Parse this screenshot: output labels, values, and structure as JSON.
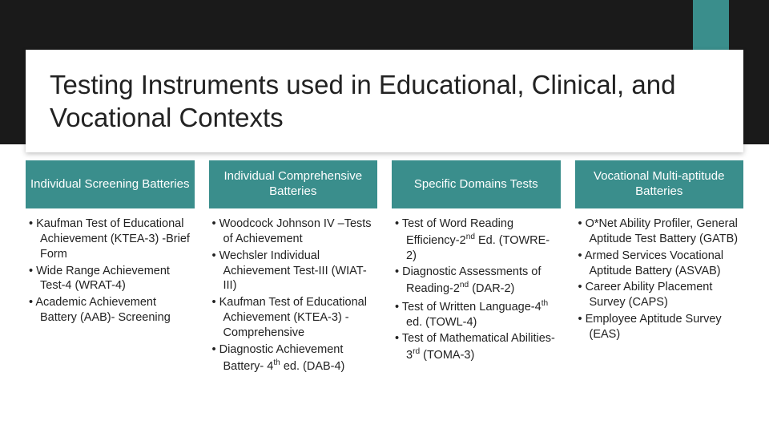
{
  "slide": {
    "title": "Testing Instruments used in Educational, Clinical, and Vocational Contexts",
    "accent_color": "#3a8e8c",
    "header_band_color": "#1a1a1a",
    "title_card_bg": "#ffffff",
    "columns": [
      {
        "header": "Individual Screening Batteries",
        "items": [
          "Kaufman Test of Educational Achievement (KTEA-3) -Brief Form",
          "Wide Range Achievement Test-4 (WRAT-4)",
          "Academic Achievement Battery (AAB)- Screening"
        ]
      },
      {
        "header": "Individual Comprehensive Batteries",
        "items": [
          "Woodcock Johnson IV –Tests of Achievement",
          "Wechsler Individual Achievement Test-III (WIAT-III)",
          "Kaufman Test of Educational Achievement (KTEA-3) -Comprehensive",
          "Diagnostic Achievement Battery- 4th ed. (DAB-4)"
        ]
      },
      {
        "header": "Specific Domains Tests",
        "items": [
          "Test of Word Reading Efficiency-2nd Ed. (TOWRE-2)",
          "Diagnostic Assessments of Reading-2nd (DAR-2)",
          "Test of Written Language-4th ed. (TOWL-4)",
          "Test of Mathematical Abilities-3rd (TOMA-3)"
        ]
      },
      {
        "header": "Vocational Multi-aptitude Batteries",
        "items": [
          "O*Net Ability Profiler, General Aptitude Test Battery (GATB)",
          "Armed Services Vocational Aptitude Battery (ASVAB)",
          "Career Ability Placement Survey (CAPS)",
          "Employee Aptitude Survey (EAS)"
        ]
      }
    ]
  }
}
